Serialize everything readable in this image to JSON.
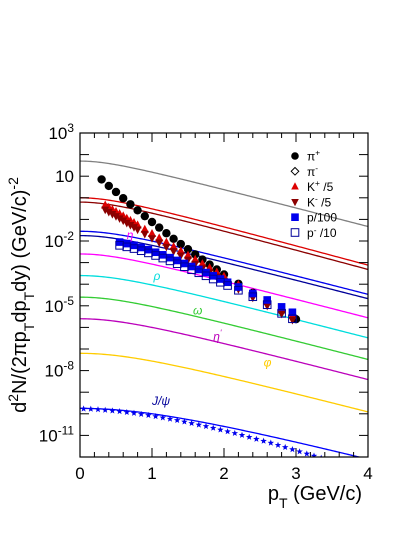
{
  "chart_data": {
    "type": "scatter",
    "title": "",
    "xlabel": "p",
    "xlabel_sub": "T",
    "xlabel_unit": " (GeV/c)",
    "ylabel_parts": [
      {
        "t": "d",
        "s": "normal"
      },
      {
        "t": "2",
        "s": "super"
      },
      {
        "t": "N/(2πp",
        "s": "normal"
      },
      {
        "t": "T",
        "s": "sub"
      },
      {
        "t": "dp",
        "s": "normal"
      },
      {
        "t": "T",
        "s": "sub"
      },
      {
        "t": "dy)  (GeV/c)",
        "s": "normal"
      },
      {
        "t": "-2",
        "s": "super"
      }
    ],
    "xlim": [
      0,
      4
    ],
    "ylim_log10": [
      -12,
      3
    ],
    "y_scale": "log",
    "grid": false,
    "legend_position": "top-right",
    "x_ticks": [
      "0",
      "1",
      "2",
      "3",
      "4"
    ],
    "y_ticks": [
      {
        "base": "10",
        "exp": "3"
      },
      {
        "base": "10",
        "exp": ""
      },
      {
        "base": "10",
        "exp": "-2"
      },
      {
        "base": "10",
        "exp": "-5"
      },
      {
        "base": "10",
        "exp": "-8"
      },
      {
        "base": "10",
        "exp": "-11"
      }
    ],
    "legend": [
      {
        "parts": [
          {
            "t": "π",
            "s": "normal"
          },
          {
            "t": "+",
            "s": "super"
          }
        ],
        "marker": "circle-filled",
        "color": "#000000"
      },
      {
        "parts": [
          {
            "t": "π",
            "s": "normal"
          },
          {
            "t": "-",
            "s": "super"
          }
        ],
        "marker": "diamond-open",
        "color": "#000000"
      },
      {
        "parts": [
          {
            "t": "K",
            "s": "normal"
          },
          {
            "t": "+",
            "s": "super"
          },
          {
            "t": " /5",
            "s": "normal"
          }
        ],
        "marker": "triangle-up",
        "color": "#dd0000"
      },
      {
        "parts": [
          {
            "t": "K",
            "s": "normal"
          },
          {
            "t": "-",
            "s": "super"
          },
          {
            "t": " /5",
            "s": "normal"
          }
        ],
        "marker": "triangle-down",
        "color": "#8b0000"
      },
      {
        "parts": [
          {
            "t": "p/100",
            "s": "normal"
          }
        ],
        "marker": "square-filled",
        "color": "#0000ee"
      },
      {
        "parts": [
          {
            "t": "p",
            "s": "normal"
          },
          {
            "t": "-",
            "s": "overbar"
          },
          {
            "t": " /10",
            "s": "normal"
          }
        ],
        "marker": "square-open",
        "color": "#000099"
      }
    ],
    "curves": [
      {
        "name": "pi",
        "color": "#808080",
        "y0": 1.7,
        "yw": 1.6,
        "w": 0.55,
        "t": 0.5
      },
      {
        "name": "K+",
        "color": "#dd0000",
        "y0": 0.0,
        "yw": -0.2,
        "w": 0.6,
        "t": 0.48
      },
      {
        "name": "K-",
        "color": "#8b0000",
        "y0": -0.2,
        "yw": -0.4,
        "w": 0.6,
        "t": 0.48
      },
      {
        "name": "p",
        "color": "#0000ee",
        "y0": -1.55,
        "yw": -1.65,
        "w": 0.7,
        "t": 0.5
      },
      {
        "name": "pbar",
        "color": "#000099",
        "y0": -1.75,
        "yw": -1.85,
        "w": 0.7,
        "t": 0.5
      },
      {
        "name": "eta",
        "color": "#ff00ff",
        "y0": -2.6,
        "yw": -2.75,
        "w": 0.65,
        "t": 0.5
      },
      {
        "name": "rho",
        "color": "#00dddd",
        "y0": -3.6,
        "yw": -3.7,
        "w": 0.75,
        "t": 0.5
      },
      {
        "name": "omega",
        "color": "#33cc33",
        "y0": -4.6,
        "yw": -4.7,
        "w": 0.75,
        "t": 0.5
      },
      {
        "name": "etaprime",
        "color": "#bb00bb",
        "y0": -5.6,
        "yw": -5.7,
        "w": 0.85,
        "t": 0.5
      },
      {
        "name": "phi",
        "color": "#ffcc00",
        "y0": -7.2,
        "yw": -7.3,
        "w": 1.0,
        "t": 0.5
      },
      {
        "name": "jpsi",
        "color": "#0000ff",
        "y0": -9.75,
        "yw": -9.8,
        "w": 1.6,
        "t": 0.5
      }
    ],
    "curve_labels": [
      {
        "parts": [
          {
            "t": "η",
            "s": "normal"
          }
        ],
        "color": "#ff00ff",
        "x": 0.65,
        "y": -1.9
      },
      {
        "parts": [
          {
            "t": "ρ",
            "s": "normal"
          }
        ],
        "color": "#00dddd",
        "x": 1.02,
        "y": -3.8
      },
      {
        "parts": [
          {
            "t": "ω",
            "s": "normal"
          }
        ],
        "color": "#33cc33",
        "x": 1.57,
        "y": -5.4
      },
      {
        "parts": [
          {
            "t": "η",
            "s": "normal"
          },
          {
            "t": "'",
            "s": "super"
          }
        ],
        "color": "#bb00bb",
        "x": 1.85,
        "y": -6.6
      },
      {
        "parts": [
          {
            "t": "φ",
            "s": "normal"
          }
        ],
        "color": "#ffcc00",
        "x": 2.55,
        "y": -7.8
      },
      {
        "parts": [
          {
            "t": "J/ψ",
            "s": "normal"
          }
        ],
        "color": "#000099",
        "x": 1.0,
        "y": -9.6
      }
    ],
    "series": [
      {
        "key": "pip",
        "marker": "circle-filled",
        "color": "#000000",
        "size": 4.2,
        "x": [
          0.3,
          0.4,
          0.5,
          0.6,
          0.7,
          0.8,
          0.9,
          1.0,
          1.1,
          1.2,
          1.3,
          1.4,
          1.5,
          1.6,
          1.7,
          1.8,
          1.9,
          2.0,
          2.2,
          2.4,
          2.6,
          2.8,
          3.0
        ],
        "y": [
          0.85,
          0.55,
          0.27,
          -0.02,
          -0.3,
          -0.58,
          -0.85,
          -1.12,
          -1.38,
          -1.64,
          -1.9,
          -2.14,
          -2.38,
          -2.62,
          -2.86,
          -3.09,
          -3.32,
          -3.55,
          -3.98,
          -4.4,
          -4.82,
          -5.22,
          -5.62
        ]
      },
      {
        "key": "kp",
        "marker": "triangle-up",
        "color": "#dd0000",
        "size": 4.2,
        "x": [
          0.35,
          0.4,
          0.45,
          0.5,
          0.55,
          0.6,
          0.65,
          0.7,
          0.75,
          0.8,
          0.9,
          1.0,
          1.1,
          1.2,
          1.3,
          1.4,
          1.5,
          1.6,
          1.7,
          1.8,
          1.9,
          2.0,
          2.2,
          2.4,
          2.6,
          2.8,
          2.95
        ],
        "y": [
          -0.35,
          -0.45,
          -0.55,
          -0.65,
          -0.75,
          -0.85,
          -0.96,
          -1.06,
          -1.16,
          -1.27,
          -1.47,
          -1.67,
          -1.87,
          -2.07,
          -2.27,
          -2.47,
          -2.67,
          -2.86,
          -3.06,
          -3.25,
          -3.45,
          -3.64,
          -4.03,
          -4.42,
          -4.8,
          -5.17,
          -5.45
        ]
      },
      {
        "key": "km",
        "marker": "triangle-down",
        "color": "#8b0000",
        "size": 4.0,
        "x": [
          0.35,
          0.4,
          0.45,
          0.5,
          0.55,
          0.6,
          0.65,
          0.7,
          0.75,
          0.8,
          0.9,
          1.0,
          1.1,
          1.2,
          1.3,
          1.4,
          1.5,
          1.6,
          1.7,
          1.8,
          1.9,
          2.0,
          2.2,
          2.4,
          2.6,
          2.8,
          2.95
        ],
        "y": [
          -0.55,
          -0.65,
          -0.75,
          -0.85,
          -0.95,
          -1.05,
          -1.16,
          -1.26,
          -1.36,
          -1.47,
          -1.67,
          -1.87,
          -2.07,
          -2.27,
          -2.47,
          -2.67,
          -2.87,
          -3.06,
          -3.26,
          -3.45,
          -3.65,
          -3.84,
          -4.23,
          -4.62,
          -5.0,
          -5.37,
          -5.65
        ]
      },
      {
        "key": "p",
        "marker": "square-filled",
        "color": "#0000ee",
        "size": 3.8,
        "x": [
          0.55,
          0.65,
          0.75,
          0.85,
          0.95,
          1.05,
          1.15,
          1.25,
          1.35,
          1.45,
          1.55,
          1.65,
          1.75,
          1.85,
          1.95,
          2.05,
          2.2,
          2.4,
          2.6,
          2.8,
          2.95
        ],
        "y": [
          -2.05,
          -2.12,
          -2.2,
          -2.3,
          -2.4,
          -2.52,
          -2.64,
          -2.77,
          -2.9,
          -3.04,
          -3.18,
          -3.32,
          -3.46,
          -3.61,
          -3.76,
          -3.91,
          -4.13,
          -4.43,
          -4.73,
          -5.05,
          -5.3
        ]
      },
      {
        "key": "pbar",
        "marker": "square-open",
        "color": "#000099",
        "size": 3.8,
        "x": [
          0.55,
          0.65,
          0.75,
          0.85,
          0.95,
          1.05,
          1.15,
          1.25,
          1.35,
          1.45,
          1.55,
          1.65,
          1.75,
          1.85,
          1.95,
          2.05,
          2.2,
          2.4,
          2.6,
          2.8,
          2.95
        ],
        "y": [
          -2.2,
          -2.27,
          -2.35,
          -2.45,
          -2.55,
          -2.67,
          -2.79,
          -2.92,
          -3.05,
          -3.19,
          -3.33,
          -3.47,
          -3.61,
          -3.76,
          -3.91,
          -4.06,
          -4.28,
          -4.58,
          -4.95,
          -5.35,
          -5.6
        ]
      },
      {
        "key": "jpsi",
        "marker": "star",
        "color": "#0000ee",
        "size": 3.4,
        "x": [
          0.05,
          0.15,
          0.25,
          0.35,
          0.45,
          0.55,
          0.65,
          0.75,
          0.85,
          0.95,
          1.05,
          1.15,
          1.25,
          1.35,
          1.45,
          1.55,
          1.65,
          1.75,
          1.85,
          1.95,
          2.05,
          2.15,
          2.25,
          2.35,
          2.45,
          2.55,
          2.65,
          2.75,
          2.85,
          2.95,
          3.05,
          3.15,
          3.25,
          3.35
        ],
        "y": [
          -9.77,
          -9.78,
          -9.8,
          -9.83,
          -9.86,
          -9.89,
          -9.93,
          -9.97,
          -10.02,
          -10.07,
          -10.12,
          -10.18,
          -10.24,
          -10.3,
          -10.37,
          -10.44,
          -10.51,
          -10.58,
          -10.66,
          -10.74,
          -10.82,
          -10.9,
          -10.99,
          -11.08,
          -11.17,
          -11.26,
          -11.35,
          -11.45,
          -11.55,
          -11.65,
          -11.75,
          -11.85,
          -11.95,
          -12.05
        ]
      }
    ]
  }
}
